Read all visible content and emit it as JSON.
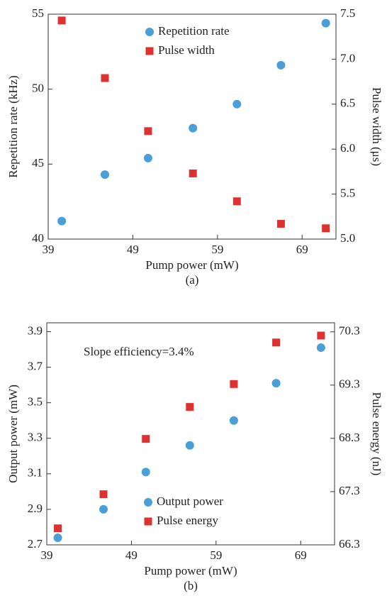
{
  "chart_data": [
    {
      "type": "scatter",
      "caption": "(a)",
      "xlabel": "Pump power (mW)",
      "ylabel": "Repetition rate (kHz)",
      "y2label": "Pulse width (μs)",
      "xlim": [
        39,
        73
      ],
      "xticks": [
        39,
        49,
        59,
        69
      ],
      "ylim": [
        40,
        55
      ],
      "yticks": [
        40,
        45,
        50,
        55
      ],
      "y2lim": [
        5,
        7.5
      ],
      "y2ticks": [
        {
          "value": 5,
          "label": "5.0"
        },
        5.5,
        {
          "value": 6,
          "label": "6.0"
        },
        6.5,
        {
          "value": 7,
          "label": "7.0"
        },
        7.5
      ],
      "legend": "upper center",
      "x": [
        40.6,
        45.7,
        50.8,
        56.1,
        61.3,
        66.5,
        71.8
      ],
      "series": [
        {
          "name": "Repetition rate",
          "color": "#4a9fd8",
          "marker": "circle",
          "values": [
            41.2,
            44.3,
            45.4,
            47.4,
            49.0,
            51.6,
            54.4
          ]
        },
        {
          "name": "Pulse width",
          "color": "#e03131",
          "marker": "square",
          "axis": "y2",
          "values": [
            7.43,
            6.79,
            6.2,
            5.73,
            5.42,
            5.17,
            5.12
          ]
        }
      ]
    },
    {
      "type": "scatter",
      "caption": "(b)",
      "xlabel": "Pump power (mW)",
      "ylabel": "Output power (mW)",
      "y2label": "Pulse energy (nJ)",
      "annotation": "Slope efficiency=3.4%",
      "xlim": [
        39,
        73
      ],
      "xticks": [
        39,
        49,
        59,
        69
      ],
      "ylim": [
        2.7,
        3.95
      ],
      "yticks": [
        2.7,
        2.9,
        3.1,
        3.3,
        3.5,
        3.7,
        3.9
      ],
      "y2lim": [
        66.3,
        70.47
      ],
      "y2ticks": [
        66.3,
        67.3,
        68.3,
        69.3,
        70.3
      ],
      "legend": "lower center",
      "x": [
        40.3,
        45.7,
        50.7,
        55.9,
        61.1,
        66.1,
        71.4
      ],
      "series": [
        {
          "name": "Output power",
          "color": "#4a9fd8",
          "marker": "circle",
          "values": [
            2.74,
            2.9,
            3.11,
            3.26,
            3.4,
            3.61,
            3.81
          ]
        },
        {
          "name": "Pulse energy",
          "color": "#e03131",
          "marker": "square",
          "axis": "y2",
          "values": [
            66.61,
            67.25,
            68.29,
            68.89,
            69.32,
            70.1,
            70.23
          ]
        }
      ]
    }
  ]
}
